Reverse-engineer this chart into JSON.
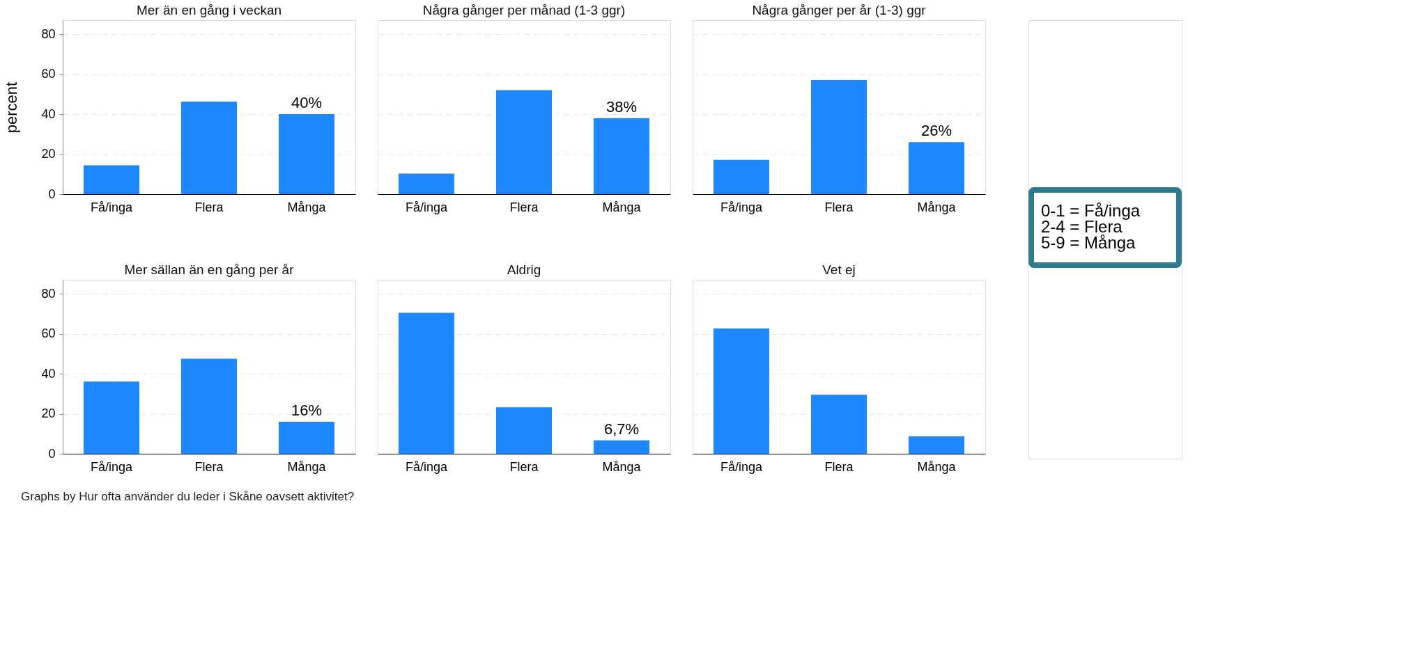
{
  "chart_data": [
    {
      "type": "bar",
      "title": "Mer än en gång i veckan",
      "ylabel": "percent",
      "categories": [
        "Få/inga",
        "Flera",
        "Många"
      ],
      "values": [
        14.4,
        46.3,
        40
      ],
      "value_labels": [
        null,
        null,
        "40%"
      ],
      "color": "#1f87ff",
      "ylim": [
        0,
        87
      ],
      "yticks": [
        0,
        20,
        40,
        60,
        80
      ],
      "grid": "y"
    },
    {
      "type": "bar",
      "title": "Några gånger per månad (1-3 ggr)",
      "categories": [
        "Få/inga",
        "Flera",
        "Många"
      ],
      "values": [
        10.3,
        52,
        38
      ],
      "value_labels": [
        null,
        null,
        "38%"
      ],
      "color": "#1f87ff",
      "ylim": [
        0,
        87
      ],
      "yticks": [
        0,
        20,
        40,
        60,
        80
      ],
      "grid": "y",
      "tick_labels": "x"
    },
    {
      "type": "bar",
      "title": "Några gånger per år (1-3) ggr",
      "categories": [
        "Få/inga",
        "Flera",
        "Många"
      ],
      "values": [
        17.1,
        57.1,
        26
      ],
      "value_labels": [
        null,
        null,
        "26%"
      ],
      "color": "#1f87ff",
      "ylim": [
        0,
        87
      ],
      "yticks": [
        0,
        20,
        40,
        60,
        80
      ],
      "grid": "y",
      "tick_labels": "x"
    },
    {
      "type": "bar",
      "title": "Mer sällan än en gång per år",
      "categories": [
        "Få/inga",
        "Flera",
        "Många"
      ],
      "values": [
        36.1,
        47.5,
        16
      ],
      "value_labels": [
        null,
        null,
        "16%"
      ],
      "color": "#1f87ff",
      "ylim": [
        0,
        87
      ],
      "yticks": [
        0,
        20,
        40,
        60,
        80
      ],
      "grid": "y",
      "annotations": [
        "Graphs by Hur ofta använder du leder i Skåne oavsett aktivitet?"
      ]
    },
    {
      "type": "bar",
      "title": "Aldrig",
      "categories": [
        "Få/inga",
        "Flera",
        "Många"
      ],
      "values": [
        70.5,
        23.2,
        6.7
      ],
      "value_labels": [
        null,
        null,
        "6,7%"
      ],
      "color": "#1f87ff",
      "ylim": [
        0,
        87
      ],
      "yticks": [
        0,
        20,
        40,
        60,
        80
      ],
      "grid": "y",
      "tick_labels": "x"
    },
    {
      "type": "bar",
      "title": "Vet ej",
      "categories": [
        "Få/inga",
        "Flera",
        "Många"
      ],
      "values": [
        62.6,
        29.5,
        8.7
      ],
      "color": "#1f87ff",
      "ylim": [
        0,
        87
      ],
      "yticks": [
        0,
        20,
        40,
        60,
        80
      ],
      "grid": "y",
      "tick_labels": "x"
    },
    {
      "type": "other",
      "annotations": [
        "0-1 = Få/inga",
        "2-4 = Flera",
        "5-9 = Många"
      ]
    }
  ]
}
